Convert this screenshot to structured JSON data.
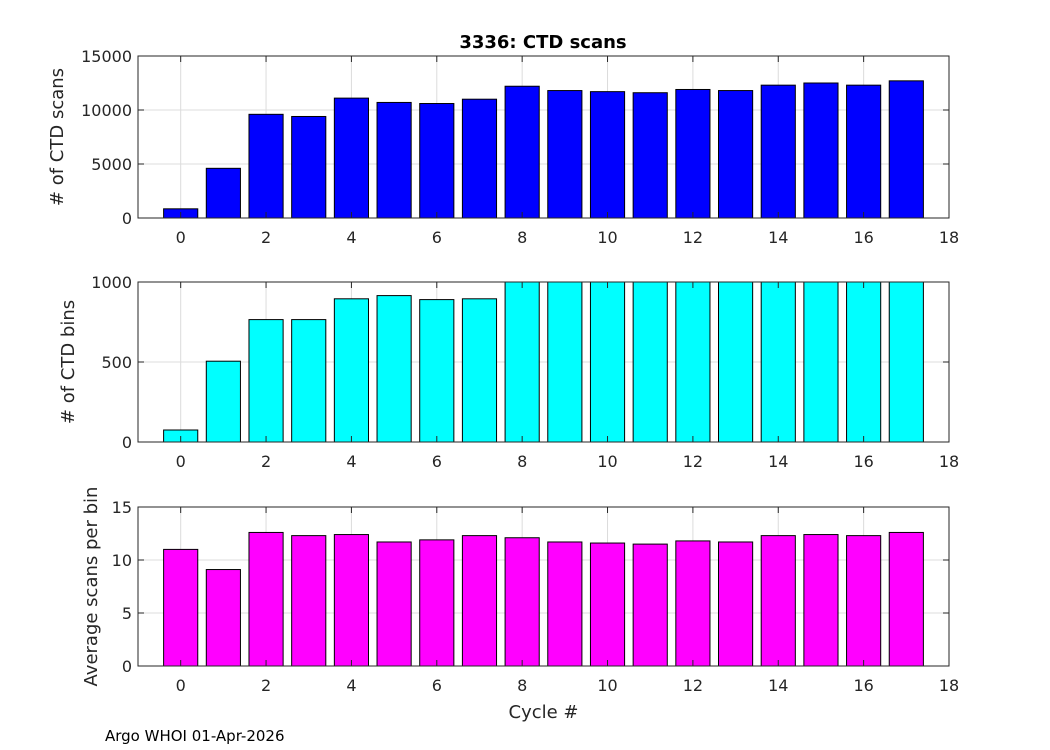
{
  "title": "3336: CTD scans",
  "footer": "Argo WHOI 01-Apr-2026",
  "colors": {
    "scans": "#0000ff",
    "bins": "#00ffff",
    "avg": "#ff00ff"
  },
  "chart_data": [
    {
      "type": "bar",
      "title": "3336: CTD scans",
      "xlabel": "",
      "ylabel": "# of CTD scans",
      "xlim": [
        -1,
        18
      ],
      "ylim": [
        0,
        15000
      ],
      "xticks": [
        0,
        2,
        4,
        6,
        8,
        10,
        12,
        14,
        16,
        18
      ],
      "yticks": [
        0,
        5000,
        10000,
        15000
      ],
      "grid": true,
      "x": [
        0,
        1,
        2,
        3,
        4,
        5,
        6,
        7,
        8,
        9,
        10,
        11,
        12,
        13,
        14,
        15,
        16,
        17
      ],
      "values": [
        850,
        4600,
        9600,
        9400,
        11100,
        10700,
        10600,
        11000,
        12200,
        11800,
        11700,
        11600,
        11900,
        11800,
        12300,
        12500,
        12300,
        12700
      ]
    },
    {
      "type": "bar",
      "title": "",
      "xlabel": "",
      "ylabel": "# of CTD bins",
      "xlim": [
        -1,
        18
      ],
      "ylim": [
        0,
        1000
      ],
      "xticks": [
        0,
        2,
        4,
        6,
        8,
        10,
        12,
        14,
        16,
        18
      ],
      "yticks": [
        0,
        500,
        1000
      ],
      "grid": true,
      "x": [
        0,
        1,
        2,
        3,
        4,
        5,
        6,
        7,
        8,
        9,
        10,
        11,
        12,
        13,
        14,
        15,
        16,
        17
      ],
      "values": [
        75,
        505,
        765,
        765,
        895,
        915,
        890,
        895,
        1000,
        1000,
        1000,
        1000,
        1000,
        1000,
        1000,
        1000,
        1000,
        1000
      ]
    },
    {
      "type": "bar",
      "title": "",
      "xlabel": "Cycle #",
      "ylabel": "Average scans per bin",
      "xlim": [
        -1,
        18
      ],
      "ylim": [
        0,
        15
      ],
      "xticks": [
        0,
        2,
        4,
        6,
        8,
        10,
        12,
        14,
        16,
        18
      ],
      "yticks": [
        0,
        5,
        10,
        15
      ],
      "grid": true,
      "x": [
        0,
        1,
        2,
        3,
        4,
        5,
        6,
        7,
        8,
        9,
        10,
        11,
        12,
        13,
        14,
        15,
        16,
        17
      ],
      "values": [
        11.0,
        9.1,
        12.6,
        12.3,
        12.4,
        11.7,
        11.9,
        12.3,
        12.1,
        11.7,
        11.6,
        11.5,
        11.8,
        11.7,
        12.3,
        12.4,
        12.3,
        12.6
      ]
    }
  ]
}
